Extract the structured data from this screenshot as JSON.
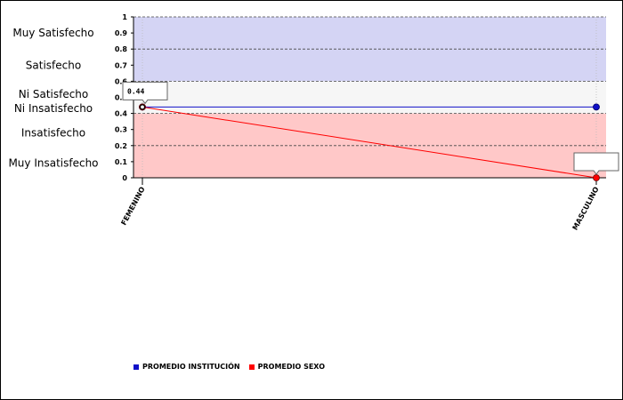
{
  "bands": [
    {
      "label": "Muy Satisfecho",
      "y": 0.9
    },
    {
      "label": "Satisfecho",
      "y": 0.7
    },
    {
      "label": "Ni Satisfecho",
      "y": 0.52
    },
    {
      "label": "Ni Insatisfecho",
      "y": 0.43
    },
    {
      "label": "Insatisfecho",
      "y": 0.28
    },
    {
      "label": "Muy Insatisfecho",
      "y": 0.09
    }
  ],
  "tooltips": [
    {
      "text": "0.44",
      "series": 1,
      "index": 0
    },
    {
      "text": "",
      "series": 1,
      "index": 1
    }
  ],
  "colors": {
    "institucion": "#1010c8",
    "sexo": "#ff0000",
    "band_high": "#d4d4f4",
    "band_mid": "#f6f6f6",
    "band_low": "#ffc8c8"
  },
  "chart_data": {
    "type": "line",
    "categories": [
      "FEMENINO",
      "MASCULINO"
    ],
    "series": [
      {
        "name": "PROMEDIO INSTITUCIÓN",
        "values": [
          0.44,
          0.44
        ],
        "color": "#1010c8"
      },
      {
        "name": "PROMEDIO SEXO",
        "values": [
          0.44,
          0
        ],
        "color": "#ff0000"
      }
    ],
    "ylim": [
      0,
      1
    ],
    "yticks": [
      "0",
      "0.1",
      "0.2",
      "0.3",
      "0.4",
      "0.5",
      "0.6",
      "0.7",
      "0.8",
      "0.9",
      "1"
    ],
    "background_bands": [
      {
        "from": 0.6,
        "to": 1.0,
        "color": "#d4d4f4"
      },
      {
        "from": 0.4,
        "to": 0.6,
        "color": "#f6f6f6"
      },
      {
        "from": 0.0,
        "to": 0.4,
        "color": "#ffc8c8"
      }
    ],
    "dashed_lines": [
      0.2,
      0.4,
      0.6,
      0.8,
      1.0
    ],
    "legend_position": "bottom-left",
    "grid": true
  }
}
